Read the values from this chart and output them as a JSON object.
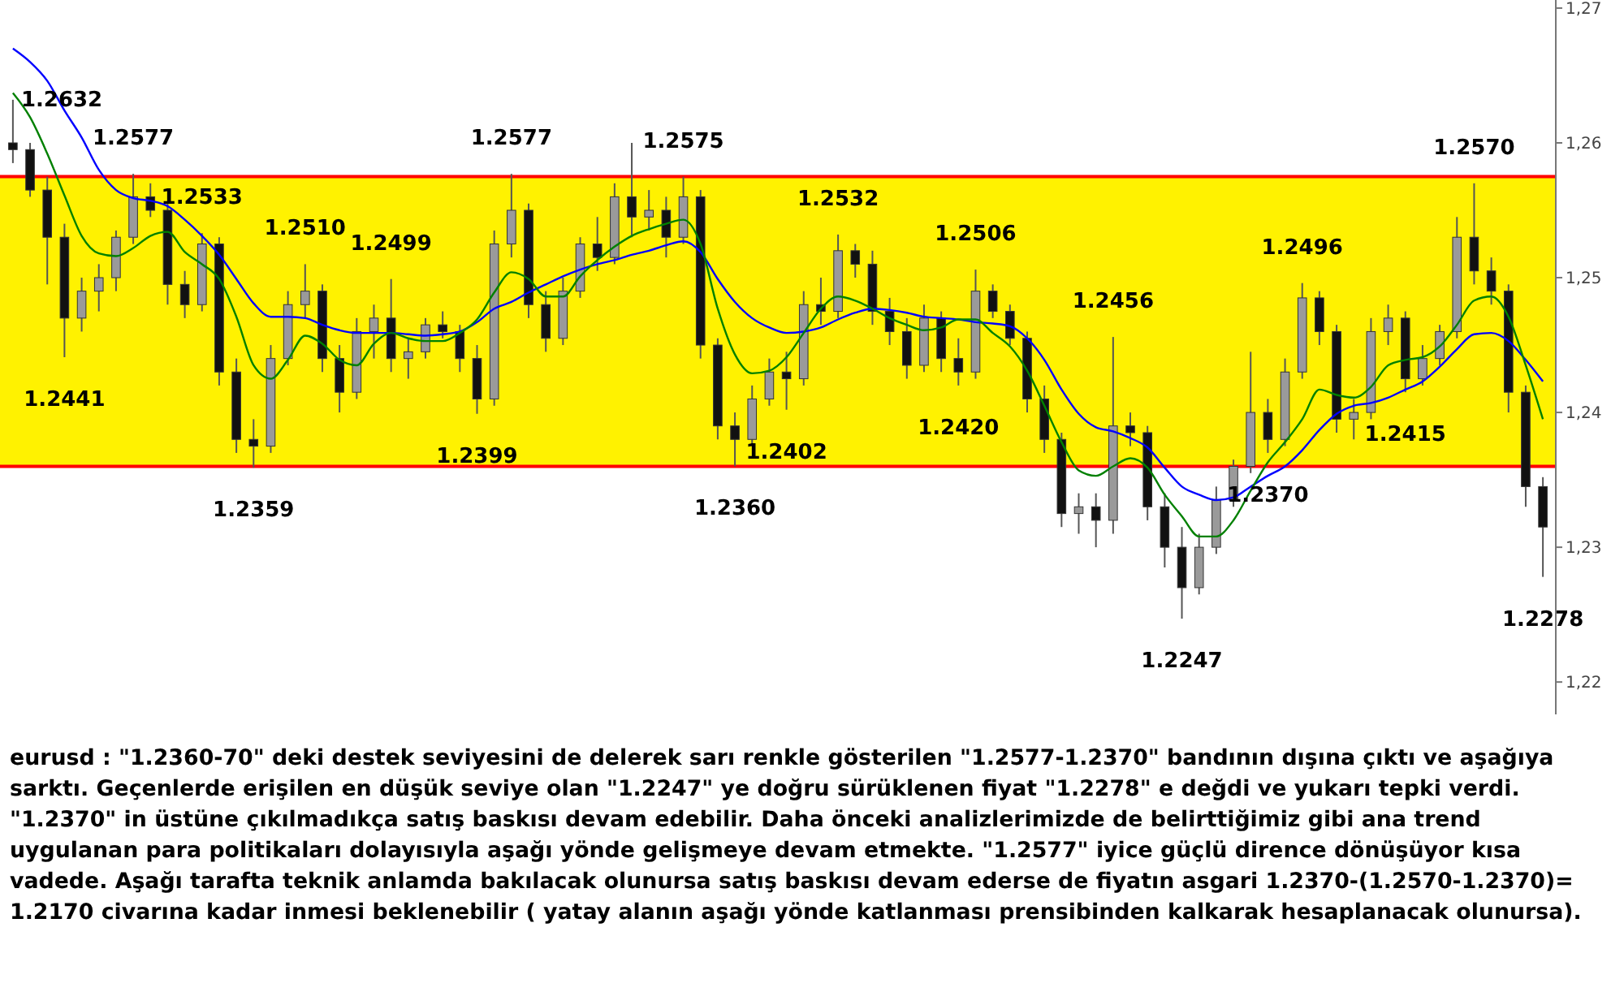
{
  "chart_data": {
    "type": "candlestick",
    "categories": [
      null,
      null,
      null,
      null,
      null,
      null,
      null,
      null,
      null,
      null,
      null,
      null,
      null,
      null,
      null,
      null,
      null,
      null,
      null,
      null,
      null,
      null,
      null,
      null,
      null,
      null,
      null,
      null,
      null,
      null,
      null,
      null,
      null,
      null,
      null,
      null,
      null,
      null,
      null,
      null,
      null,
      null,
      null,
      null,
      null,
      null,
      null,
      null,
      null,
      null,
      null,
      null,
      null,
      null,
      null,
      null,
      null,
      null,
      null,
      null,
      null,
      null,
      null,
      null,
      null,
      null,
      null,
      null,
      null,
      null,
      null,
      null,
      null,
      null,
      null,
      null,
      null,
      null,
      null,
      null,
      null,
      null,
      null,
      null,
      null,
      null,
      null,
      null,
      null,
      null
    ],
    "ohlc": [
      [
        1.26,
        1.2632,
        1.2585,
        1.2595
      ],
      [
        1.2595,
        1.26,
        1.256,
        1.2565
      ],
      [
        1.2565,
        1.2575,
        1.2495,
        1.253
      ],
      [
        1.253,
        1.254,
        1.2441,
        1.247
      ],
      [
        1.247,
        1.25,
        1.246,
        1.249
      ],
      [
        1.249,
        1.251,
        1.2475,
        1.25
      ],
      [
        1.25,
        1.2535,
        1.249,
        1.253
      ],
      [
        1.253,
        1.2577,
        1.2525,
        1.256
      ],
      [
        1.256,
        1.257,
        1.2545,
        1.255
      ],
      [
        1.255,
        1.2555,
        1.248,
        1.2495
      ],
      [
        1.2495,
        1.2505,
        1.247,
        1.248
      ],
      [
        1.248,
        1.2533,
        1.2475,
        1.2525
      ],
      [
        1.2525,
        1.253,
        1.242,
        1.243
      ],
      [
        1.243,
        1.244,
        1.237,
        1.238
      ],
      [
        1.238,
        1.2395,
        1.2359,
        1.2375
      ],
      [
        1.2375,
        1.245,
        1.237,
        1.244
      ],
      [
        1.244,
        1.249,
        1.2435,
        1.248
      ],
      [
        1.248,
        1.251,
        1.247,
        1.249
      ],
      [
        1.249,
        1.2495,
        1.243,
        1.244
      ],
      [
        1.244,
        1.245,
        1.24,
        1.2415
      ],
      [
        1.2415,
        1.247,
        1.241,
        1.246
      ],
      [
        1.246,
        1.248,
        1.244,
        1.247
      ],
      [
        1.247,
        1.2499,
        1.243,
        1.244
      ],
      [
        1.244,
        1.2455,
        1.2425,
        1.2445
      ],
      [
        1.2445,
        1.247,
        1.244,
        1.2465
      ],
      [
        1.2465,
        1.2475,
        1.2455,
        1.246
      ],
      [
        1.246,
        1.2465,
        1.243,
        1.244
      ],
      [
        1.244,
        1.245,
        1.2399,
        1.241
      ],
      [
        1.241,
        1.2535,
        1.2405,
        1.2525
      ],
      [
        1.2525,
        1.2577,
        1.2515,
        1.255
      ],
      [
        1.255,
        1.2555,
        1.247,
        1.248
      ],
      [
        1.248,
        1.249,
        1.2445,
        1.2455
      ],
      [
        1.2455,
        1.25,
        1.245,
        1.249
      ],
      [
        1.249,
        1.253,
        1.2485,
        1.2525
      ],
      [
        1.2525,
        1.2545,
        1.2505,
        1.2515
      ],
      [
        1.2515,
        1.257,
        1.251,
        1.256
      ],
      [
        1.256,
        1.26,
        1.253,
        1.2545
      ],
      [
        1.2545,
        1.2565,
        1.2535,
        1.255
      ],
      [
        1.255,
        1.256,
        1.2515,
        1.253
      ],
      [
        1.253,
        1.2575,
        1.2525,
        1.256
      ],
      [
        1.256,
        1.2565,
        1.244,
        1.245
      ],
      [
        1.245,
        1.2455,
        1.238,
        1.239
      ],
      [
        1.239,
        1.24,
        1.236,
        1.238
      ],
      [
        1.238,
        1.242,
        1.2375,
        1.241
      ],
      [
        1.241,
        1.244,
        1.2405,
        1.243
      ],
      [
        1.243,
        1.2445,
        1.2402,
        1.2425
      ],
      [
        1.2425,
        1.249,
        1.242,
        1.248
      ],
      [
        1.248,
        1.25,
        1.2465,
        1.2475
      ],
      [
        1.2475,
        1.2532,
        1.247,
        1.252
      ],
      [
        1.252,
        1.2525,
        1.25,
        1.251
      ],
      [
        1.251,
        1.252,
        1.2465,
        1.2475
      ],
      [
        1.2475,
        1.2485,
        1.245,
        1.246
      ],
      [
        1.246,
        1.247,
        1.2425,
        1.2435
      ],
      [
        1.2435,
        1.248,
        1.243,
        1.247
      ],
      [
        1.247,
        1.2475,
        1.243,
        1.244
      ],
      [
        1.244,
        1.2455,
        1.242,
        1.243
      ],
      [
        1.243,
        1.2506,
        1.2425,
        1.249
      ],
      [
        1.249,
        1.2495,
        1.247,
        1.2475
      ],
      [
        1.2475,
        1.248,
        1.245,
        1.2455
      ],
      [
        1.2455,
        1.246,
        1.24,
        1.241
      ],
      [
        1.241,
        1.242,
        1.237,
        1.238
      ],
      [
        1.238,
        1.2385,
        1.2315,
        1.2325
      ],
      [
        1.2325,
        1.234,
        1.231,
        1.233
      ],
      [
        1.233,
        1.234,
        1.23,
        1.232
      ],
      [
        1.232,
        1.2456,
        1.231,
        1.239
      ],
      [
        1.239,
        1.24,
        1.2375,
        1.2385
      ],
      [
        1.2385,
        1.239,
        1.232,
        1.233
      ],
      [
        1.233,
        1.234,
        1.2285,
        1.23
      ],
      [
        1.23,
        1.2315,
        1.2247,
        1.227
      ],
      [
        1.227,
        1.231,
        1.2265,
        1.23
      ],
      [
        1.23,
        1.2345,
        1.2295,
        1.2335
      ],
      [
        1.2335,
        1.2365,
        1.233,
        1.236
      ],
      [
        1.236,
        1.2445,
        1.2355,
        1.24
      ],
      [
        1.24,
        1.241,
        1.237,
        1.238
      ],
      [
        1.238,
        1.244,
        1.2375,
        1.243
      ],
      [
        1.243,
        1.2496,
        1.2425,
        1.2485
      ],
      [
        1.2485,
        1.249,
        1.245,
        1.246
      ],
      [
        1.246,
        1.2465,
        1.2385,
        1.2395
      ],
      [
        1.2395,
        1.241,
        1.238,
        1.24
      ],
      [
        1.24,
        1.247,
        1.2395,
        1.246
      ],
      [
        1.246,
        1.248,
        1.245,
        1.247
      ],
      [
        1.247,
        1.2475,
        1.2415,
        1.2425
      ],
      [
        1.2425,
        1.245,
        1.242,
        1.244
      ],
      [
        1.244,
        1.2465,
        1.2435,
        1.246
      ],
      [
        1.246,
        1.2545,
        1.2455,
        1.253
      ],
      [
        1.253,
        1.257,
        1.2495,
        1.2505
      ],
      [
        1.2505,
        1.2515,
        1.248,
        1.249
      ],
      [
        1.249,
        1.2495,
        1.24,
        1.2415
      ],
      [
        1.2415,
        1.242,
        1.233,
        1.2345
      ],
      [
        1.2345,
        1.2352,
        1.2278,
        1.2315
      ]
    ],
    "series": [
      {
        "type": "line",
        "color": "#0000ff",
        "values": [
          1.267,
          1.266,
          1.2646,
          1.2624,
          1.2604,
          1.258,
          1.2565,
          1.2559,
          1.2557,
          1.2553,
          1.2543,
          1.2531,
          1.2517,
          1.2499,
          1.2481,
          1.2471,
          1.2471,
          1.247,
          1.2465,
          1.2461,
          1.2459,
          1.2459,
          1.2459,
          1.2458,
          1.2457,
          1.2458,
          1.246,
          1.2467,
          1.2477,
          1.2482,
          1.2489,
          1.2495,
          1.2501,
          1.2506,
          1.251,
          1.2513,
          1.2517,
          1.252,
          1.2524,
          1.2527,
          1.2519,
          1.2499,
          1.2482,
          1.247,
          1.2463,
          1.2459,
          1.246,
          1.2463,
          1.2469,
          1.2474,
          1.2477,
          1.2476,
          1.2474,
          1.2471,
          1.247,
          1.2469,
          1.2467,
          1.2466,
          1.2464,
          1.2455,
          1.2439,
          1.2417,
          1.2399,
          1.2389,
          1.2386,
          1.2381,
          1.2374,
          1.2359,
          1.2345,
          1.2339,
          1.2335,
          1.2337,
          1.2345,
          1.2353,
          1.236,
          1.2372,
          1.2387,
          1.2399,
          1.2405,
          1.2407,
          1.2411,
          1.2417,
          1.2423,
          1.2434,
          1.2447,
          1.2458,
          1.2459,
          1.2453,
          1.2439,
          1.2423
        ]
      },
      {
        "type": "line",
        "color": "#008000",
        "values": [
          1.2637,
          1.2619,
          1.2592,
          1.2561,
          1.2531,
          1.2518,
          1.2516,
          1.2522,
          1.2531,
          1.2534,
          1.2519,
          1.251,
          1.2499,
          1.2471,
          1.2435,
          1.2425,
          1.2439,
          1.2457,
          1.2451,
          1.2439,
          1.2435,
          1.2451,
          1.2459,
          1.2455,
          1.2453,
          1.2453,
          1.2459,
          1.2469,
          1.2489,
          1.2504,
          1.2499,
          1.2486,
          1.2486,
          1.2501,
          1.2513,
          1.2523,
          1.2531,
          1.2536,
          1.254,
          1.2543,
          1.2525,
          1.2477,
          1.2443,
          1.2429,
          1.2431,
          1.2441,
          1.2459,
          1.2477,
          1.2486,
          1.2483,
          1.2477,
          1.247,
          1.2465,
          1.2461,
          1.2463,
          1.2469,
          1.2469,
          1.2459,
          1.2449,
          1.2431,
          1.2405,
          1.2378,
          1.2357,
          1.2353,
          1.236,
          1.2366,
          1.2359,
          1.2339,
          1.2323,
          1.2308,
          1.2308,
          1.232,
          1.2342,
          1.2363,
          1.2378,
          1.2395,
          1.2417,
          1.2413,
          1.2411,
          1.2419,
          1.2435,
          1.2439,
          1.2441,
          1.2449,
          1.2465,
          1.2483,
          1.2486,
          1.2471,
          1.2435,
          1.2395
        ]
      }
    ],
    "ylim": [
      1.2176,
      1.2706
    ],
    "yticks": [
      {
        "value": 1.22,
        "label": "1,22"
      },
      {
        "value": 1.23,
        "label": "1,23"
      },
      {
        "value": 1.24,
        "label": "1,24"
      },
      {
        "value": 1.25,
        "label": "1,25"
      },
      {
        "value": 1.26,
        "label": "1,26"
      },
      {
        "value": 1.27,
        "label": "1,27"
      }
    ],
    "tick_labels": "y",
    "bands": [
      {
        "axis": "y",
        "from": 1.236,
        "to": 1.2575,
        "color": "#fff200"
      }
    ],
    "ref_lines": [
      {
        "axis": "y",
        "value": 1.2575,
        "color": "#ff0000"
      },
      {
        "axis": "y",
        "value": 1.236,
        "color": "#ff0000"
      }
    ],
    "annotations": [
      {
        "text": "1.2632",
        "y": 1.2632
      },
      {
        "text": "1.2441",
        "y": 1.2441
      },
      {
        "text": "1.2577",
        "y": 1.2577
      },
      {
        "text": "1.2533",
        "y": 1.2533
      },
      {
        "text": "1.2359",
        "y": 1.2359
      },
      {
        "text": "1.2510",
        "y": 1.251
      },
      {
        "text": "1.2499",
        "y": 1.2499
      },
      {
        "text": "1.2399",
        "y": 1.2399
      },
      {
        "text": "1.2577",
        "y": 1.2577
      },
      {
        "text": "1.2575",
        "y": 1.2575
      },
      {
        "text": "1.2360",
        "y": 1.236
      },
      {
        "text": "1.2402",
        "y": 1.2402
      },
      {
        "text": "1.2532",
        "y": 1.2532
      },
      {
        "text": "1.2420",
        "y": 1.242
      },
      {
        "text": "1.2506",
        "y": 1.2506
      },
      {
        "text": "1.2456",
        "y": 1.2456
      },
      {
        "text": "1.2247",
        "y": 1.2247
      },
      {
        "text": "1.2370",
        "y": 1.237
      },
      {
        "text": "1.2496",
        "y": 1.2496
      },
      {
        "text": "1.2415",
        "y": 1.2415
      },
      {
        "text": "1.2570",
        "y": 1.257
      },
      {
        "text": "1.2278",
        "y": 1.2278
      },
      "eurusd : \"1.2360-70\" deki destek seviyesini de delerek sarı renkle gösterilen \"1.2577-1.2370\" bandının dışına çıktı ve aşağıya sarktı. Geçenlerde erişilen en düşük seviye olan \"1.2247\" ye doğru sürüklenen fiyat \"1.2278\" e değdi ve yukarı tepki verdi. \"1.2370\" in üstüne çıkılmadıkça satış baskısı devam edebilir. Daha önceki analizlerimizde de belirttiğimiz gibi ana trend uygulanan para politikaları dolayısıyla aşağı yönde gelişmeye devam etmekte. \"1.2577\" iyice güçlü dirence dönüşüyor kısa vadede. Aşağı tarafta teknik anlamda bakılacak olunursa satış baskısı devam ederse de fiyatın asgari 1.2370-(1.2570-1.2370)= 1.2170 civarına kadar inmesi beklenebilir ( yatay alanın aşağı yönde katlanması prensibinden kalkarak hesaplanacak olunursa)."
    ]
  }
}
